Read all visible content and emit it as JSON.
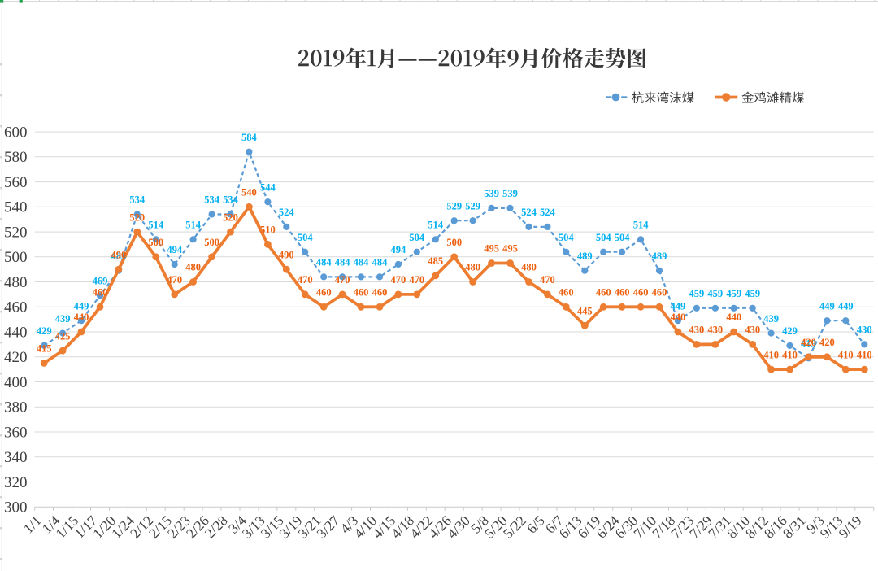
{
  "worksheet": {
    "description": "excel-sheet-edge",
    "selection_color": "#21A04B",
    "grid_color": "#D9D9D9"
  },
  "chart_data": {
    "type": "line",
    "title": "2019年1月——2019年9月价格走势图",
    "categories": [
      "1/1",
      "1/4",
      "1/15",
      "1/17",
      "1/20",
      "1/24",
      "2/12",
      "2/15",
      "2/23",
      "2/26",
      "2/28",
      "3/4",
      "3/13",
      "3/15",
      "3/19",
      "3/21",
      "3/27",
      "4/3",
      "4/10",
      "4/15",
      "4/18",
      "4/22",
      "4/26",
      "4/30",
      "5/8",
      "5/20",
      "5/22",
      "6/5",
      "6/7",
      "6/13",
      "6/19",
      "6/24",
      "6/30",
      "7/10",
      "7/18",
      "7/23",
      "7/29",
      "7/31",
      "8/10",
      "8/12",
      "8/16",
      "8/31",
      "9/3",
      "9/13",
      "9/19"
    ],
    "series": [
      {
        "name": "杭来湾沫煤",
        "values": [
          429,
          439,
          449,
          469,
          489,
          534,
          514,
          494,
          514,
          534,
          534,
          584,
          544,
          524,
          504,
          484,
          484,
          484,
          484,
          494,
          504,
          514,
          529,
          529,
          539,
          539,
          524,
          524,
          504,
          489,
          504,
          504,
          514,
          489,
          449,
          459,
          459,
          459,
          459,
          439,
          429,
          419,
          449,
          449,
          430
        ],
        "line_color": "#5B9BD5",
        "label_color": "#00B0F0",
        "line_style": "dashed"
      },
      {
        "name": "金鸡滩精煤",
        "values": [
          415,
          425,
          440,
          460,
          490,
          520,
          500,
          470,
          480,
          500,
          520,
          540,
          510,
          490,
          470,
          460,
          470,
          460,
          460,
          470,
          470,
          485,
          500,
          480,
          495,
          495,
          480,
          470,
          460,
          445,
          460,
          460,
          460,
          460,
          440,
          430,
          430,
          440,
          430,
          410,
          410,
          420,
          420,
          410,
          410
        ],
        "line_color": "#ED7D31",
        "label_color": "#EC5F0D",
        "line_style": "solid"
      }
    ],
    "ylim": [
      300,
      600
    ],
    "ytick_step": 20,
    "grid": true,
    "legend_position": "top-right",
    "data_labels": "above"
  }
}
